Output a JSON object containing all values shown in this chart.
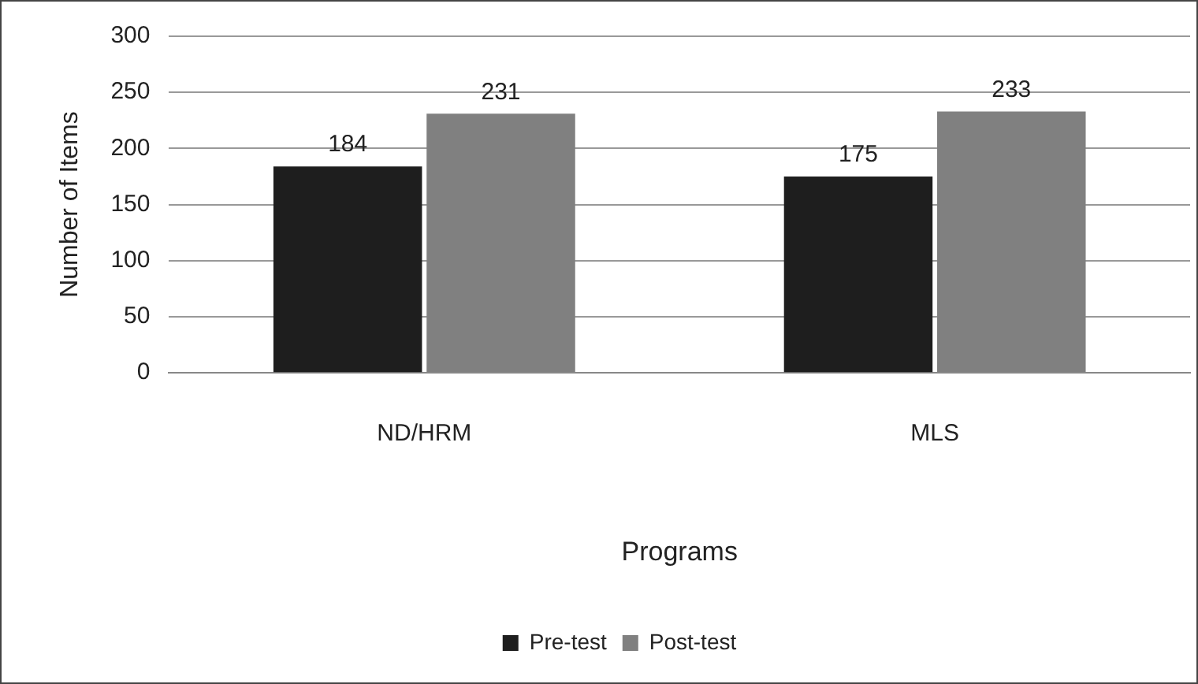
{
  "chart_data": {
    "type": "bar",
    "xlabel": "Programs",
    "ylabel": "Number of Items",
    "categories": [
      "ND/HRM",
      "MLS"
    ],
    "series": [
      {
        "name": "Pre-test",
        "color": "#1e1e1e",
        "values": [
          184,
          175
        ]
      },
      {
        "name": "Post-test",
        "color": "#808080",
        "values": [
          231,
          233
        ]
      }
    ],
    "ylim": [
      0,
      300
    ],
    "yticks": [
      0,
      50,
      100,
      150,
      200,
      250,
      300
    ],
    "grid": "y",
    "legend": "bottom",
    "data_labels": true
  }
}
